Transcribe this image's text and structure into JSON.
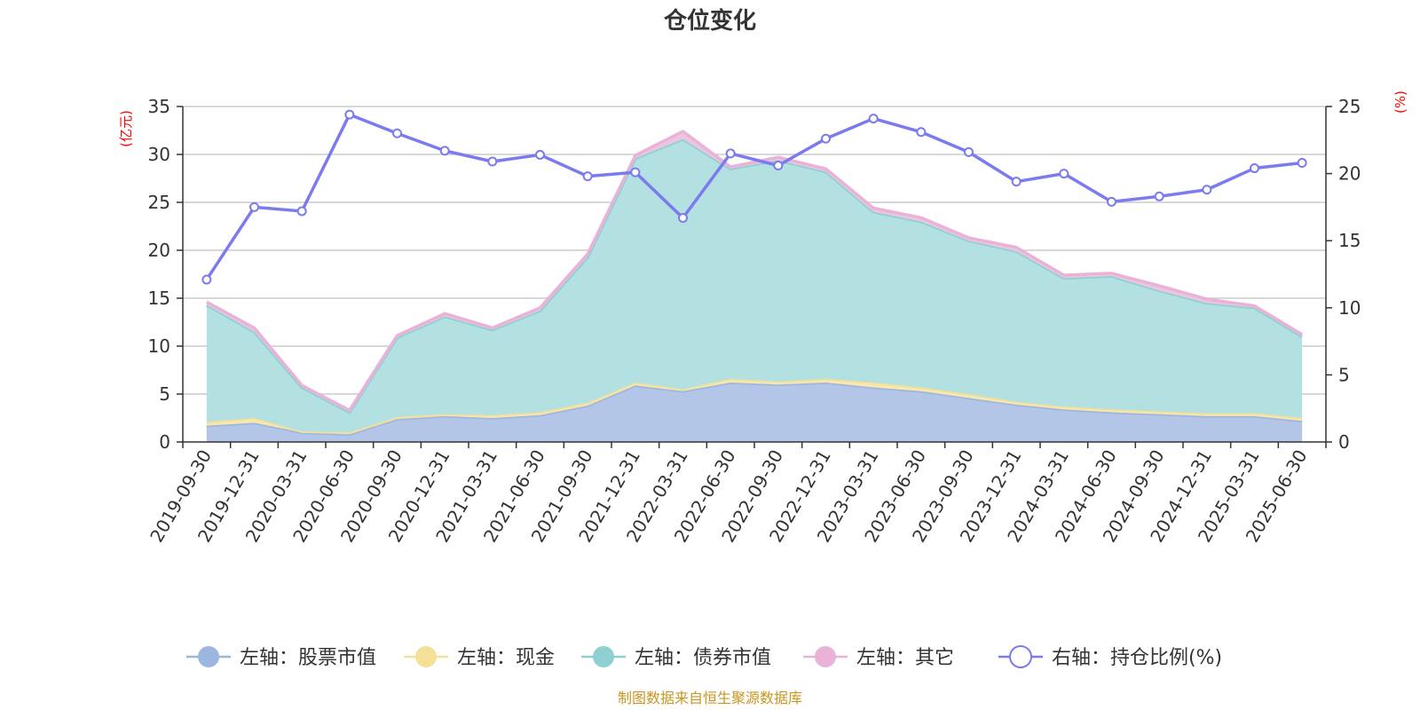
{
  "chart_data": {
    "type": "area",
    "title": "仓位变化",
    "left_axis": {
      "label": "(亿元)",
      "ylim": [
        0,
        35
      ],
      "ticks": [
        0,
        5,
        10,
        15,
        20,
        25,
        30,
        35
      ]
    },
    "right_axis": {
      "label": "(%)",
      "ylim": [
        0,
        25
      ],
      "ticks": [
        0,
        5,
        10,
        15,
        20,
        25
      ]
    },
    "categories": [
      "2019-09-30",
      "2019-12-31",
      "2020-03-31",
      "2020-06-30",
      "2020-09-30",
      "2020-12-31",
      "2021-03-31",
      "2021-06-30",
      "2021-09-30",
      "2021-12-31",
      "2022-03-31",
      "2022-06-30",
      "2022-09-30",
      "2022-12-31",
      "2023-03-31",
      "2023-06-30",
      "2023-09-30",
      "2023-12-31",
      "2024-03-31",
      "2024-06-30",
      "2024-09-30",
      "2024-12-31",
      "2025-03-31",
      "2025-06-30"
    ],
    "series": [
      {
        "name": "左轴：股票市值",
        "axis": "left",
        "kind": "stacked-area",
        "values": [
          1.7,
          2.0,
          1.0,
          0.8,
          2.4,
          2.7,
          2.5,
          2.8,
          3.8,
          5.9,
          5.3,
          6.2,
          6.0,
          6.2,
          5.7,
          5.3,
          4.6,
          3.9,
          3.4,
          3.1,
          2.9,
          2.7,
          2.7,
          2.2
        ],
        "fill": "#b4c6e8",
        "stroke": "#9db6e0"
      },
      {
        "name": "左轴：现金",
        "axis": "left",
        "kind": "stacked-area",
        "values": [
          0.4,
          0.5,
          0.1,
          0.2,
          0.2,
          0.2,
          0.3,
          0.3,
          0.3,
          0.3,
          0.2,
          0.4,
          0.3,
          0.4,
          0.5,
          0.4,
          0.4,
          0.3,
          0.3,
          0.3,
          0.3,
          0.3,
          0.3,
          0.3
        ],
        "fill": "#f8e8b0",
        "stroke": "#f5e09a"
      },
      {
        "name": "左轴：债券市值",
        "axis": "left",
        "kind": "stacked-area",
        "values": [
          12.2,
          9.0,
          4.6,
          2.1,
          8.3,
          10.2,
          8.9,
          10.6,
          15.2,
          23.4,
          26.1,
          21.9,
          23.1,
          21.6,
          17.8,
          17.3,
          16.0,
          15.7,
          13.4,
          13.9,
          12.6,
          11.5,
          11.0,
          8.5
        ],
        "fill": "#b3e0e0",
        "stroke": "#8fd0d3"
      },
      {
        "name": "左轴：其它",
        "axis": "left",
        "kind": "stacked-area",
        "values": [
          0.3,
          0.4,
          0.2,
          0.2,
          0.2,
          0.3,
          0.2,
          0.3,
          0.3,
          0.3,
          0.8,
          0.2,
          0.3,
          0.3,
          0.4,
          0.4,
          0.3,
          0.4,
          0.3,
          0.3,
          0.5,
          0.4,
          0.2,
          0.2
        ],
        "fill": "#ecc6e0",
        "stroke": "#e9b3d8"
      },
      {
        "name": "右轴：持仓比例(%)",
        "axis": "right",
        "kind": "line",
        "values": [
          12.1,
          17.5,
          17.2,
          24.4,
          23.0,
          21.7,
          20.9,
          21.4,
          19.8,
          20.1,
          16.7,
          21.5,
          20.6,
          22.6,
          24.1,
          23.1,
          21.6,
          19.4,
          20.0,
          17.9,
          18.3,
          18.8,
          20.4,
          20.8
        ],
        "stroke": "#7b7bef"
      }
    ],
    "legend_position": "bottom",
    "grid": true,
    "source": "制图数据来自恒生聚源数据库"
  }
}
